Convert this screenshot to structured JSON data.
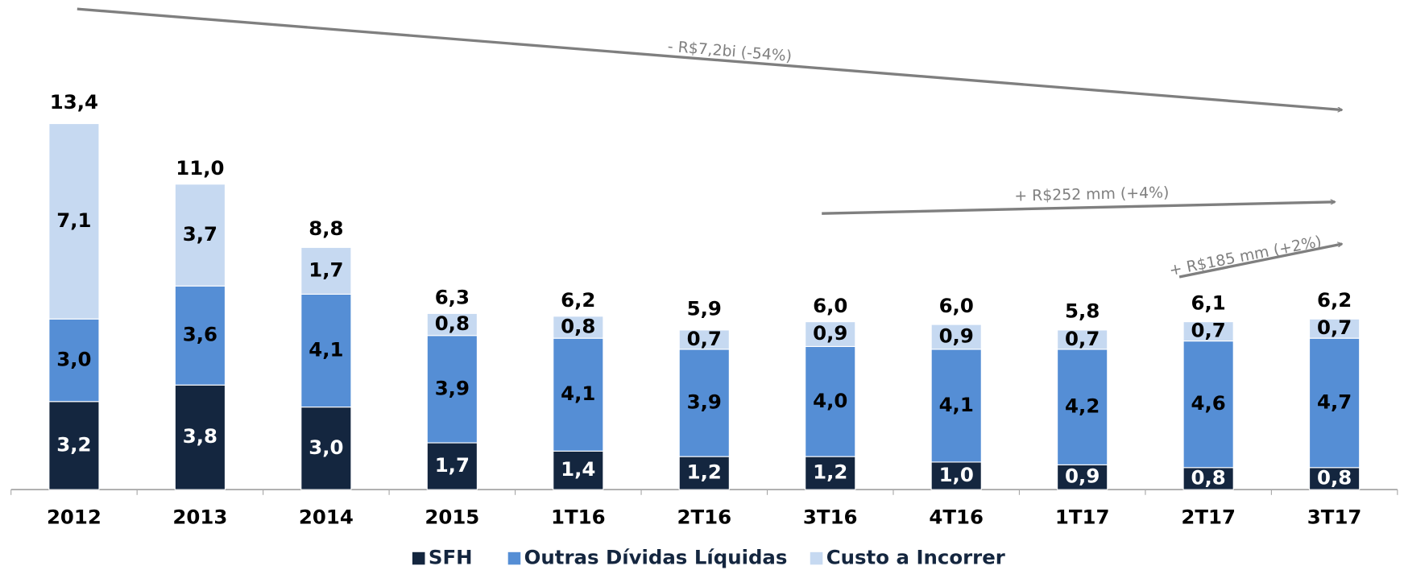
{
  "chart_data": {
    "type": "stacked_bar",
    "categories": [
      "2012",
      "2013",
      "2014",
      "2015",
      "1T16",
      "2T16",
      "3T16",
      "4T16",
      "1T17",
      "2T17",
      "3T17"
    ],
    "series": [
      {
        "name": "SFH",
        "color": "#14263f",
        "values": [
          3.2,
          3.8,
          3.0,
          1.7,
          1.4,
          1.2,
          1.2,
          1.0,
          0.9,
          0.8,
          0.8
        ],
        "value_labels": [
          "3,2",
          "3,8",
          "3,0",
          "1,7",
          "1,4",
          "1,2",
          "1,2",
          "1,0",
          "0,9",
          "0,8",
          "0,8"
        ]
      },
      {
        "name": "Outras Dívidas Líquidas",
        "color": "#558ed5",
        "values": [
          3.0,
          3.6,
          4.1,
          3.9,
          4.1,
          3.9,
          4.0,
          4.1,
          4.2,
          4.6,
          4.7
        ],
        "value_labels": [
          "3,0",
          "3,6",
          "4,1",
          "3,9",
          "4,1",
          "3,9",
          "4,0",
          "4,1",
          "4,2",
          "4,6",
          "4,7"
        ]
      },
      {
        "name": "Custo a Incorrer",
        "color": "#c6d9f1",
        "values": [
          7.1,
          3.7,
          1.7,
          0.8,
          0.8,
          0.7,
          0.9,
          0.9,
          0.7,
          0.7,
          0.7
        ],
        "value_labels": [
          "7,1",
          "3,7",
          "1,7",
          "0,8",
          "0,8",
          "0,7",
          "0,9",
          "0,9",
          "0,7",
          "0,7",
          "0,7"
        ]
      }
    ],
    "totals": [
      13.4,
      11.0,
      8.8,
      6.3,
      6.2,
      5.9,
      6.0,
      6.0,
      5.8,
      6.1,
      6.2
    ],
    "total_labels": [
      "13,4",
      "11,0",
      "8,8",
      "6,3",
      "6,2",
      "5,9",
      "6,0",
      "6,0",
      "5,8",
      "6,1",
      "6,2"
    ],
    "annotations": [
      "- R$7,2bi (-54%)",
      "+ R$252 mm (+4%)",
      "+ R$185 mm (+2%)"
    ],
    "ylim": [
      0,
      15
    ],
    "legend": "bottom"
  }
}
